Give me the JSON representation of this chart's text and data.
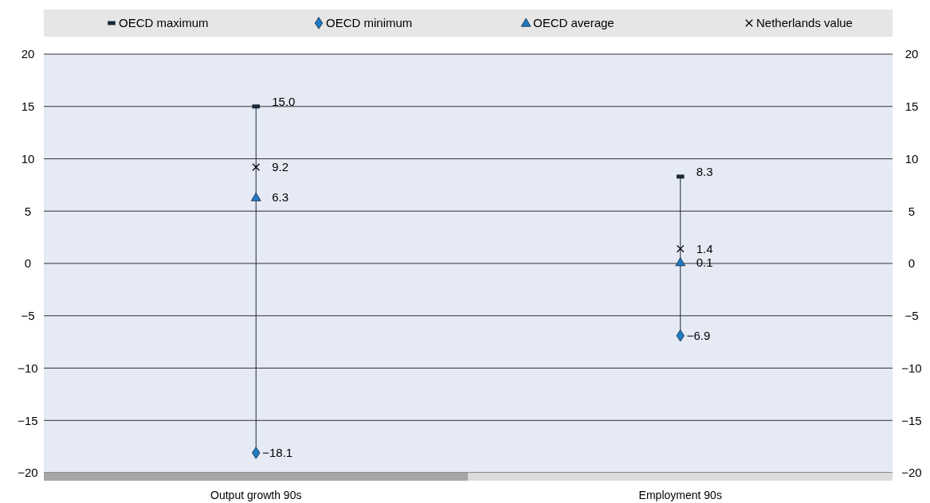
{
  "chart_data": {
    "type": "scatter",
    "categories": [
      "Output growth 90s",
      "Employment 90s"
    ],
    "ylim": [
      -20,
      20
    ],
    "yticks": [
      -20,
      -15,
      -10,
      -5,
      0,
      5,
      10,
      15,
      20
    ],
    "y2lim": [
      -20,
      20
    ],
    "y2ticks": [
      -20,
      -15,
      -10,
      -5,
      0,
      5,
      10,
      15,
      20
    ],
    "grid": "y",
    "legend": "top",
    "series": [
      {
        "name": "OECD maximum",
        "color": "#1a2a3a",
        "marker": "square",
        "values": [
          15.0,
          8.3
        ],
        "value_labels": [
          "15.0",
          "8.3"
        ]
      },
      {
        "name": "OECD minimum",
        "color": "#1f7ac2",
        "marker": "diamond",
        "values": [
          -18.1,
          -6.9
        ],
        "value_labels": [
          "−18.1",
          "−6.9"
        ]
      },
      {
        "name": "OECD average",
        "color": "#1f7ac2",
        "marker": "triangle",
        "values": [
          6.3,
          0.1
        ],
        "value_labels": [
          "6.3",
          "0.1"
        ]
      },
      {
        "name": "Netherlands value",
        "color": "#000000",
        "marker": "cross",
        "values": [
          9.2,
          1.4
        ],
        "value_labels": [
          "9.2",
          "1.4"
        ]
      }
    ]
  }
}
